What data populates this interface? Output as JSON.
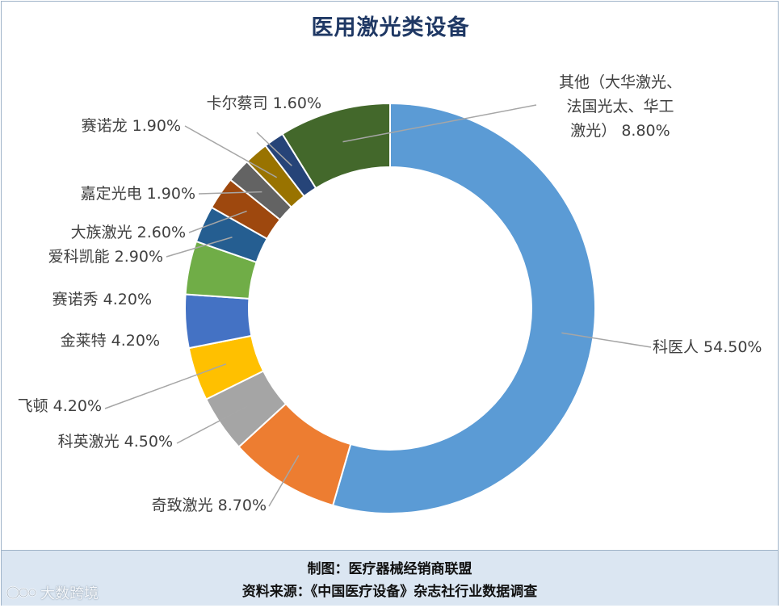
{
  "chart_data": {
    "type": "pie",
    "variant": "donut",
    "title": "医用激光类设备",
    "slices": [
      {
        "label": "科医人 54.50%",
        "name": "科医人",
        "value": 54.5,
        "color": "#5b9bd5"
      },
      {
        "label": "奇致激光 8.70%",
        "name": "奇致激光",
        "value": 8.7,
        "color": "#ed7d31"
      },
      {
        "label": "科英激光 4.50%",
        "name": "科英激光",
        "value": 4.5,
        "color": "#a5a5a5"
      },
      {
        "label": "飞顿 4.20%",
        "name": "飞顿",
        "value": 4.2,
        "color": "#ffc000"
      },
      {
        "label": "金莱特 4.20%",
        "name": "金莱特",
        "value": 4.2,
        "color": "#4472c4"
      },
      {
        "label": "赛诺秀 4.20%",
        "name": "赛诺秀",
        "value": 4.2,
        "color": "#70ad47"
      },
      {
        "label": "爱科凯能 2.90%",
        "name": "爱科凯能",
        "value": 2.9,
        "color": "#255e91"
      },
      {
        "label": "大族激光 2.60%",
        "name": "大族激光",
        "value": 2.6,
        "color": "#9e480e"
      },
      {
        "label": "嘉定光电 1.90%",
        "name": "嘉定光电",
        "value": 1.9,
        "color": "#636363"
      },
      {
        "label": "赛诺龙 1.90%",
        "name": "赛诺龙",
        "value": 1.9,
        "color": "#997300"
      },
      {
        "label": "卡尔蔡司 1.60%",
        "name": "卡尔蔡司",
        "value": 1.6,
        "color": "#264478"
      },
      {
        "label": "其他（大华激光、\n法国光太、华工\n激光） 8.80%",
        "name": "其他（大华激光、法国光太、华工激光）",
        "value": 8.8,
        "color": "#43682b"
      }
    ],
    "start_angle": "12 o'clock",
    "direction": "clockwise",
    "legend": "none",
    "labels": "outside with leader lines"
  },
  "footer": {
    "credit": "制图：医疗器械经销商联盟",
    "source": "资料来源：《中国医疗设备》杂志社行业数据调查",
    "background_color": "#dbe6f2"
  },
  "watermark": {
    "text": "大数跨境"
  },
  "colors": {
    "title": "#1f3864",
    "label_text": "#404040",
    "leader_line": "#a6a6a6",
    "frame_border": "#9fb3c8"
  }
}
